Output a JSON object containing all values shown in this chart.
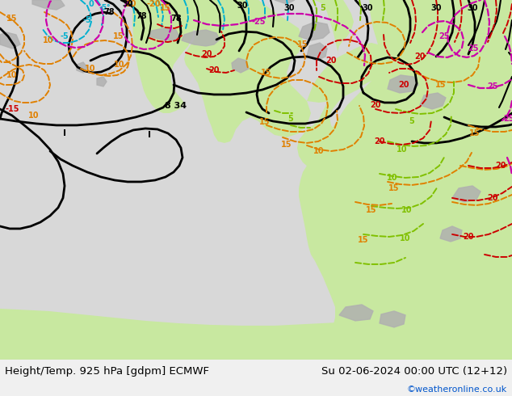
{
  "title_left": "Height/Temp. 925 hPa [gdpm] ECMWF",
  "title_right": "Su 02-06-2024 00:00 UTC (12+12)",
  "watermark": "©weatheronline.co.uk",
  "bg_sea_color": "#d8d8d8",
  "land_color": "#c8e8a0",
  "gray_terrain": "#b0b0b0",
  "white_bg": "#ffffff",
  "bottom_bar_color": "#f0f0f0",
  "text_color_black": "#000000",
  "text_color_blue": "#0055cc",
  "font_size_title": 9.5,
  "font_size_watermark": 8,
  "fig_width": 6.34,
  "fig_height": 4.9
}
